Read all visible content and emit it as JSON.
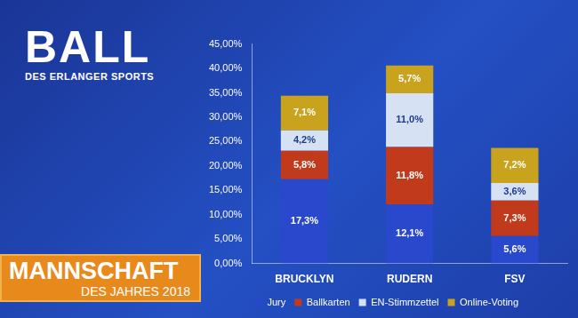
{
  "chart_data": {
    "type": "bar",
    "title": "MANNSCHAFT",
    "subtitle": "DES JAHRES 2018",
    "annotations": [
      "BALL",
      "DES ERLANGER SPORTS"
    ],
    "categories": [
      "BRUCKLYN",
      "RUDERN",
      "FSV"
    ],
    "series": [
      {
        "name": "Jury",
        "color": "#2a48cc",
        "values": [
          17.3,
          12.1,
          5.6
        ],
        "value_labels": [
          "17,3%",
          "12,1%",
          "5,6%"
        ]
      },
      {
        "name": "Ballkarten",
        "color": "#c23a1c",
        "values": [
          5.8,
          11.8,
          7.3
        ],
        "value_labels": [
          "5,8%",
          "11,8%",
          "7,3%"
        ]
      },
      {
        "name": "EN-Stimmzettel",
        "color": "#d6e2f4",
        "values": [
          4.2,
          11.0,
          3.6
        ],
        "value_labels": [
          "4,2%",
          "11,0%",
          "3,6%"
        ]
      },
      {
        "name": "Online-Voting",
        "color": "#c9a21e",
        "values": [
          7.1,
          5.7,
          7.2
        ],
        "value_labels": [
          "7,1%",
          "5,7%",
          "7,2%"
        ]
      }
    ],
    "stacked": true,
    "data_labels": true,
    "legend": "bottom",
    "grid": false,
    "ylim": [
      0,
      45
    ],
    "yticks": [
      {
        "value": 0,
        "label": "0,00%"
      },
      {
        "value": 5,
        "label": "5,00%"
      },
      {
        "value": 10,
        "label": "10,00%"
      },
      {
        "value": 15,
        "label": "15,00%"
      },
      {
        "value": 20,
        "label": "20,00%"
      },
      {
        "value": 25,
        "label": "25,00%"
      },
      {
        "value": 30,
        "label": "30,00%"
      },
      {
        "value": 35,
        "label": "35,00%"
      },
      {
        "value": 40,
        "label": "40,00%"
      },
      {
        "value": 45,
        "label": "45,00%"
      }
    ]
  }
}
